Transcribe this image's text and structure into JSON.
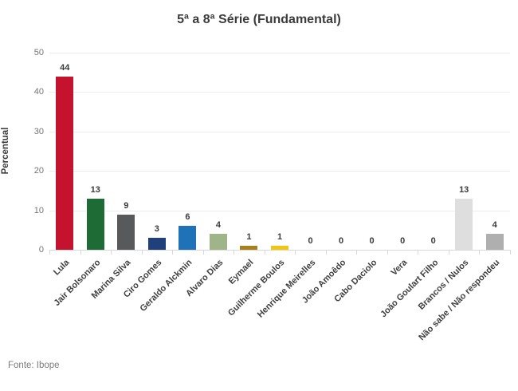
{
  "title": "5ª a 8ª Série (Fundamental)",
  "footer": {
    "source": "Fonte: Ibope"
  },
  "chart_data": {
    "type": "bar",
    "title": "5ª a 8ª Série (Fundamental)",
    "xlabel": "",
    "ylabel": "Percentual",
    "ylim": [
      0,
      50
    ],
    "yticks": [
      0,
      10,
      20,
      30,
      40,
      50
    ],
    "grid": true,
    "legend": false,
    "categories": [
      "Lula",
      "Jair Bolsonaro",
      "Marina Silva",
      "Ciro Gomes",
      "Geraldo Alckmin",
      "Alvaro Dias",
      "Eymael",
      "Guilherme Boulos",
      "Henrique Meirelles",
      "João Amoêdo",
      "Cabo Daciolo",
      "Vera",
      "João Goulart Filho",
      "Brancos / Nulos",
      "Não sabe / Não respondeu"
    ],
    "values": [
      44,
      13,
      9,
      3,
      6,
      4,
      1,
      1,
      0,
      0,
      0,
      0,
      0,
      13,
      4
    ],
    "bar_colors": [
      "#c4122f",
      "#1e6b35",
      "#58595b",
      "#20407b",
      "#1f72b8",
      "#9fb489",
      "#a97f1c",
      "#f2c511",
      null,
      null,
      null,
      null,
      null,
      "#dedede",
      "#afafaf"
    ],
    "source": "Fonte: Ibope"
  }
}
